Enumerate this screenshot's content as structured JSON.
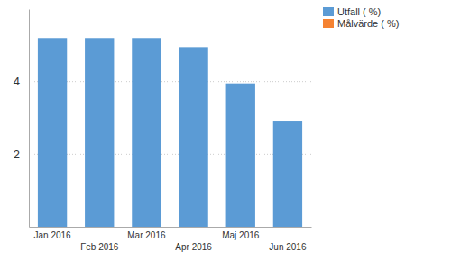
{
  "chart_data": {
    "type": "bar",
    "categories": [
      "Jan 2016",
      "Feb 2016",
      "Mar 2016",
      "Apr 2016",
      "Maj 2016",
      "Jun 2016"
    ],
    "series": [
      {
        "name": "Utfall ( %)",
        "color": "#5b9bd5",
        "values": [
          5.2,
          5.2,
          5.2,
          4.95,
          3.95,
          2.9
        ]
      },
      {
        "name": "Målvärde ( %)",
        "color": "#f58231",
        "values": [
          null,
          null,
          null,
          null,
          null,
          null
        ]
      }
    ],
    "ylim": [
      0,
      6
    ],
    "yticks": [
      2,
      4
    ],
    "grid": true,
    "legend": "top-right"
  }
}
